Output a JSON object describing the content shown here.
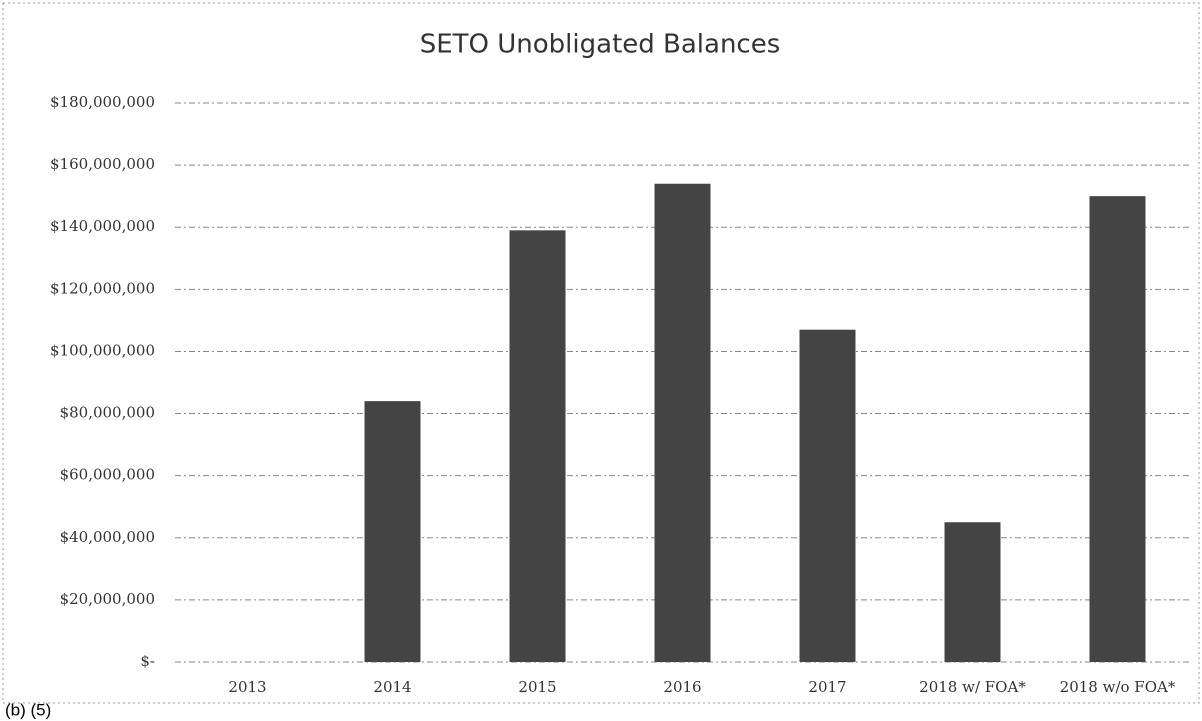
{
  "chart_data": {
    "type": "bar",
    "title": "SETO Unobligated Balances",
    "categories": [
      "2013",
      "2014",
      "2015",
      "2016",
      "2017",
      "2018 w/ FOA*",
      "2018 w/o FOA*"
    ],
    "values": [
      0,
      84000000,
      139000000,
      154000000,
      107000000,
      45000000,
      150000000
    ],
    "color": "#444444",
    "ylim": [
      0,
      180000000
    ],
    "yticks": [
      {
        "value": 0,
        "label": "$-"
      },
      {
        "value": 20000000,
        "label": "$20,000,000"
      },
      {
        "value": 40000000,
        "label": "$40,000,000"
      },
      {
        "value": 60000000,
        "label": "$60,000,000"
      },
      {
        "value": 80000000,
        "label": "$80,000,000"
      },
      {
        "value": 100000000,
        "label": "$100,000,000"
      },
      {
        "value": 120000000,
        "label": "$120,000,000"
      },
      {
        "value": 140000000,
        "label": "$140,000,000"
      },
      {
        "value": 160000000,
        "label": "$160,000,000"
      },
      {
        "value": 180000000,
        "label": "$180,000,000"
      }
    ],
    "grid": true,
    "annotation": "(b) (5)"
  }
}
